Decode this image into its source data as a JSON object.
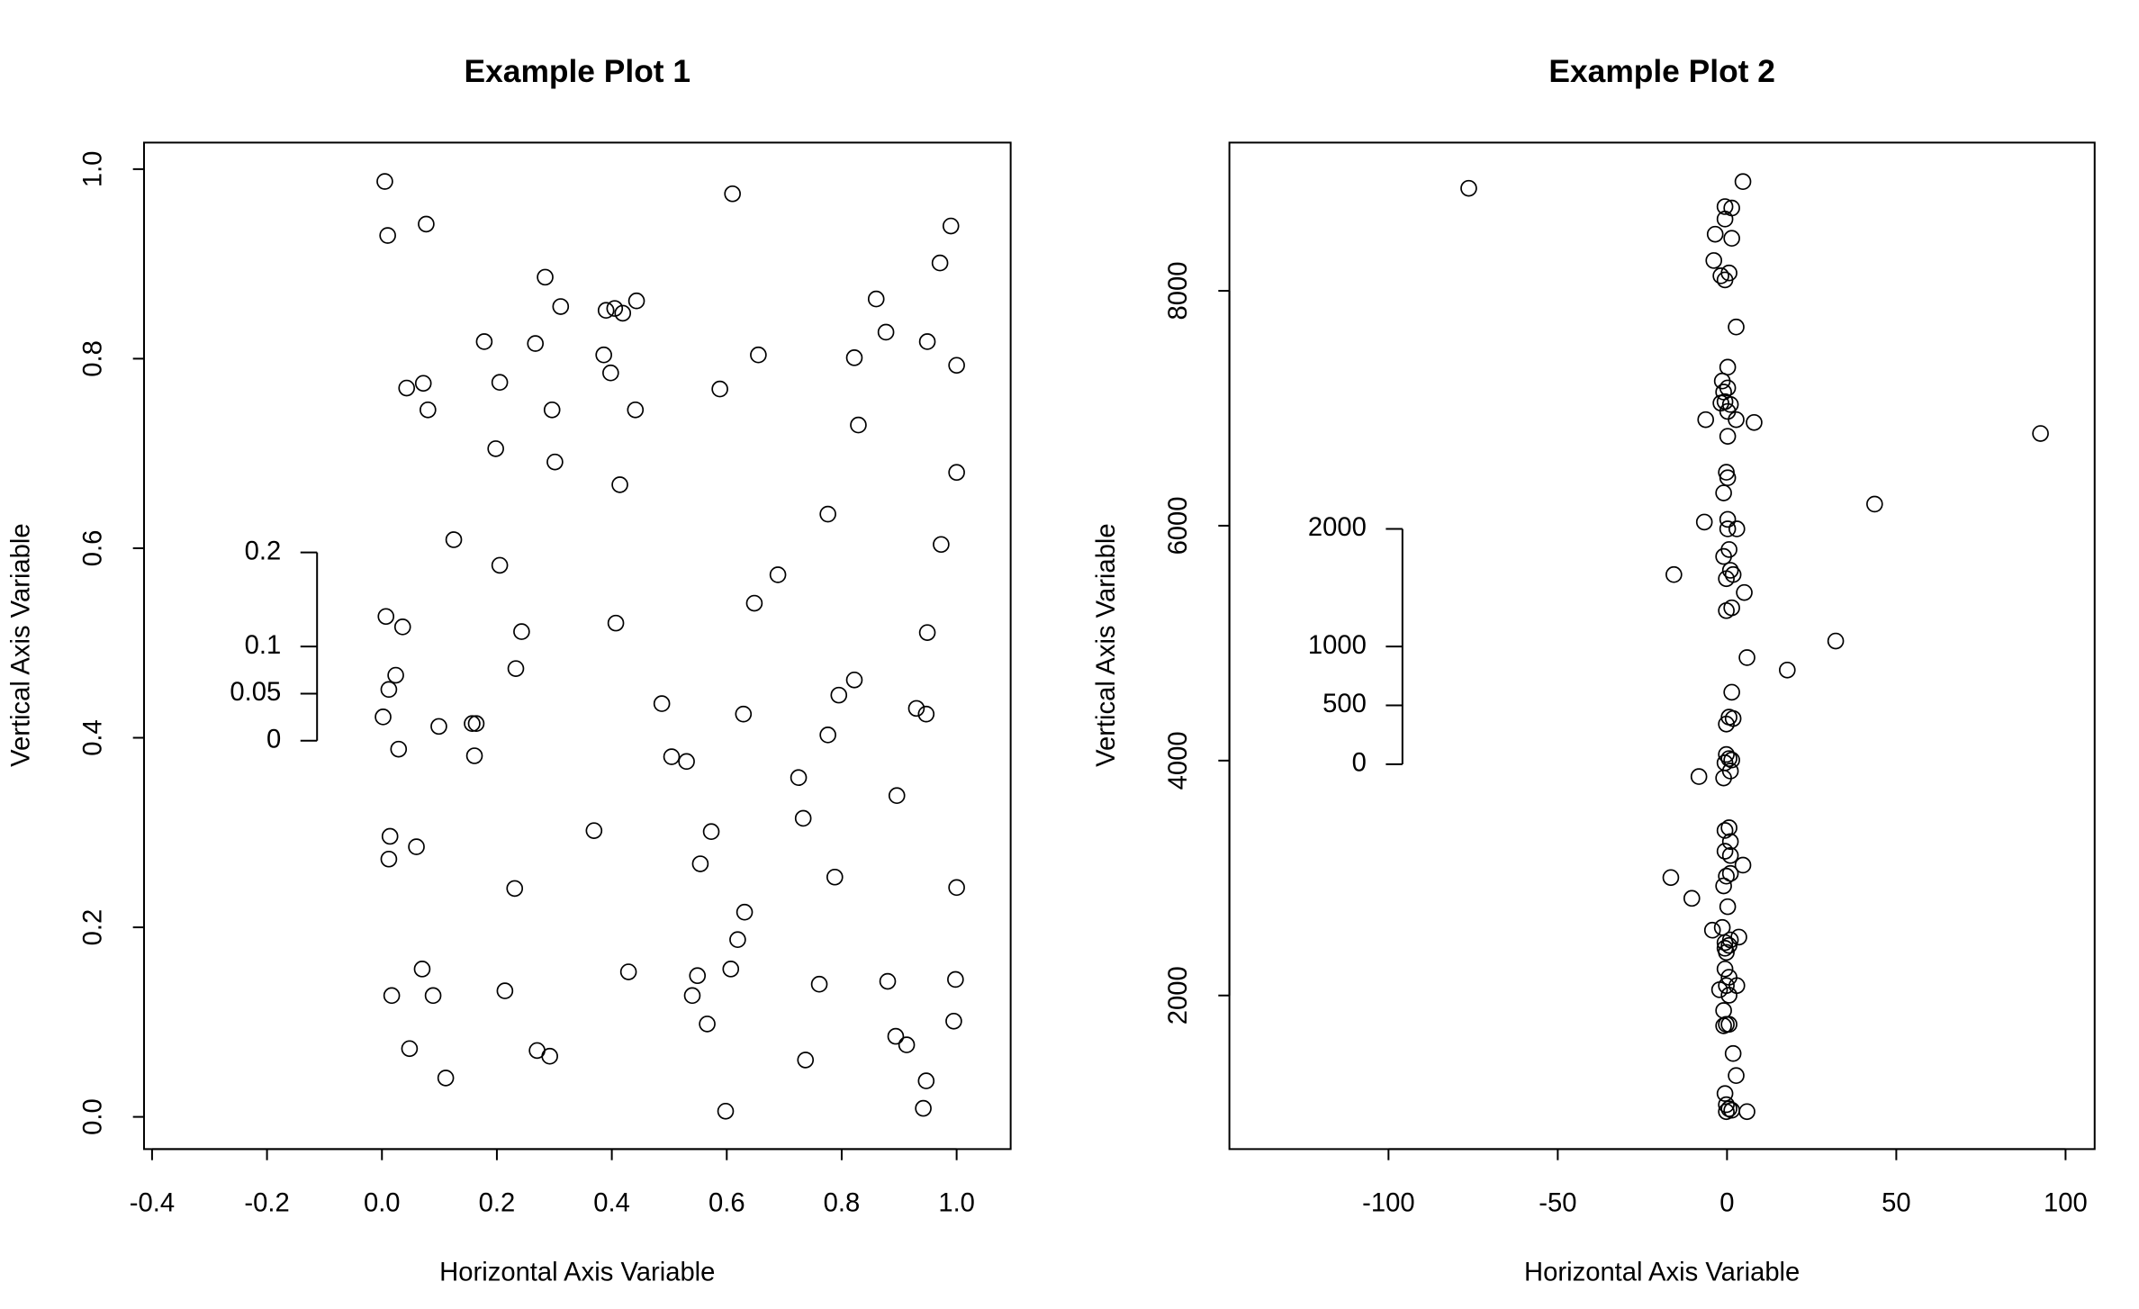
{
  "chart_data": [
    {
      "type": "scatter",
      "title": "Example Plot 1",
      "x_label": "Horizontal Axis Variable",
      "y_label": "Vertical Axis Variable",
      "color": "#000000",
      "marker": "open-circle",
      "xlim": [
        -0.414,
        1.094
      ],
      "ylim": [
        -0.034,
        1.028
      ],
      "xticks": [
        -0.4,
        -0.2,
        {
          "value": 0,
          "label": "0.0"
        },
        0.2,
        0.4,
        0.6,
        0.8,
        {
          "value": 1,
          "label": "1.0"
        }
      ],
      "yticks": [
        {
          "value": 0,
          "label": "0.0"
        },
        0.2,
        0.4,
        0.6,
        0.8,
        {
          "value": 1,
          "label": "1.0"
        }
      ],
      "inset_ticks": [
        0,
        0.05,
        0.1,
        0.2
      ],
      "x": [
        0.005,
        0.01,
        0.077,
        0.61,
        0.99,
        0.971,
        0.284,
        0.311,
        0.443,
        0.39,
        0.405,
        0.419,
        0.86,
        0.877,
        0.178,
        0.267,
        0.949,
        0.386,
        0.655,
        0.822,
        1.0,
        0.072,
        0.043,
        0.205,
        0.398,
        0.588,
        0.08,
        0.296,
        0.441,
        0.829,
        0.198,
        0.301,
        1.0,
        0.414,
        0.776,
        0.125,
        0.973,
        0.205,
        0.689,
        0.648,
        0.007,
        0.036,
        0.407,
        0.243,
        0.949,
        0.233,
        0.024,
        0.822,
        0.012,
        0.795,
        0.487,
        0.93,
        0.947,
        0.629,
        0.002,
        0.099,
        0.157,
        0.164,
        0.776,
        0.029,
        0.161,
        0.504,
        0.53,
        0.725,
        0.896,
        0.733,
        0.369,
        0.573,
        0.014,
        0.06,
        0.554,
        0.012,
        0.788,
        0.231,
        1.0,
        0.631,
        0.619,
        0.07,
        0.429,
        0.607,
        0.549,
        0.88,
        0.761,
        0.998,
        0.017,
        0.089,
        0.214,
        0.54,
        0.566,
        0.995,
        0.894,
        0.913,
        0.048,
        0.27,
        0.292,
        0.737,
        0.111,
        0.947,
        0.598,
        0.942
      ],
      "y": [
        0.987,
        0.93,
        0.942,
        0.974,
        0.94,
        0.901,
        0.886,
        0.855,
        0.861,
        0.851,
        0.853,
        0.848,
        0.863,
        0.828,
        0.818,
        0.816,
        0.818,
        0.804,
        0.804,
        0.801,
        0.793,
        0.774,
        0.769,
        0.775,
        0.785,
        0.768,
        0.746,
        0.746,
        0.746,
        0.73,
        0.705,
        0.691,
        0.68,
        0.667,
        0.636,
        0.609,
        0.604,
        0.582,
        0.572,
        0.542,
        0.528,
        0.517,
        0.521,
        0.512,
        0.511,
        0.473,
        0.466,
        0.461,
        0.451,
        0.445,
        0.436,
        0.431,
        0.425,
        0.425,
        0.422,
        0.412,
        0.415,
        0.415,
        0.403,
        0.388,
        0.381,
        0.38,
        0.375,
        0.358,
        0.339,
        0.315,
        0.302,
        0.301,
        0.296,
        0.285,
        0.267,
        0.272,
        0.253,
        0.241,
        0.242,
        0.216,
        0.187,
        0.156,
        0.153,
        0.156,
        0.149,
        0.143,
        0.14,
        0.145,
        0.128,
        0.128,
        0.133,
        0.128,
        0.098,
        0.101,
        0.085,
        0.076,
        0.072,
        0.07,
        0.064,
        0.06,
        0.041,
        0.038,
        0.006,
        0.009
      ]
    },
    {
      "type": "scatter",
      "title": "Example Plot 2",
      "x_label": "Horizontal Axis Variable",
      "y_label": "Vertical Axis Variable",
      "color": "#000000",
      "marker": "open-circle",
      "xlim": [
        -147,
        108.6
      ],
      "ylim": [
        692,
        9262
      ],
      "xticks": [
        -100,
        -50,
        0,
        50,
        100
      ],
      "yticks": [
        2000,
        4000,
        6000,
        8000
      ],
      "inset_ticks": [
        0,
        500,
        1000,
        2000
      ],
      "x": [
        -76.3,
        4.7,
        -0.6,
        1.4,
        -0.6,
        -3.5,
        1.4,
        -3.9,
        0.6,
        -1.8,
        -0.6,
        2.7,
        0.2,
        -1.4,
        0.2,
        -1.0,
        -0.6,
        -1.8,
        1.0,
        0.2,
        -6.3,
        2.7,
        8.0,
        0.2,
        92.6,
        -0.2,
        0.2,
        -1.0,
        43.6,
        0.2,
        -6.7,
        0.2,
        2.9,
        0.6,
        -1.0,
        -15.7,
        1.0,
        1.8,
        -0.2,
        5.1,
        1.4,
        -0.2,
        32.1,
        5.9,
        17.8,
        1.4,
        0.6,
        -0.2,
        1.8,
        -0.2,
        0.6,
        -0.6,
        1.4,
        1.0,
        -1.0,
        -8.3,
        0.6,
        -0.6,
        1.0,
        -0.6,
        1.0,
        4.7,
        1.0,
        -0.2,
        -16.6,
        -1.0,
        -10.4,
        0.2,
        -1.4,
        -4.3,
        3.5,
        1.0,
        -0.6,
        0.6,
        -0.6,
        -0.2,
        -0.6,
        0.6,
        2.9,
        -0.2,
        -2.2,
        0.6,
        -1.0,
        -0.2,
        -1.0,
        0.6,
        1.8,
        2.7,
        -0.6,
        -0.2,
        0.6,
        1.4,
        -0.2,
        5.9
      ],
      "y": [
        8873,
        8930,
        8717,
        8705,
        8611,
        8482,
        8447,
        8258,
        8152,
        8128,
        8093,
        7692,
        7350,
        7232,
        7173,
        7138,
        7056,
        7044,
        7032,
        6973,
        6903,
        6903,
        6879,
        6761,
        6785,
        6455,
        6408,
        6279,
        6184,
        6054,
        6031,
        5973,
        5973,
        5797,
        5738,
        5584,
        5620,
        5584,
        5549,
        5431,
        5301,
        5277,
        5018,
        4877,
        4771,
        4582,
        4370,
        4311,
        4358,
        4052,
        4017,
        3981,
        4005,
        3911,
        3852,
        3864,
        3428,
        3405,
        3310,
        3228,
        3192,
        3110,
        3039,
        3016,
        3004,
        2933,
        2827,
        2756,
        2579,
        2556,
        2497,
        2473,
        2450,
        2426,
        2402,
        2367,
        2226,
        2155,
        2084,
        2084,
        2049,
        2002,
        1872,
        1754,
        1742,
        1754,
        1506,
        1318,
        1165,
        1070,
        1035,
        1023,
        1011,
        1011
      ]
    }
  ]
}
